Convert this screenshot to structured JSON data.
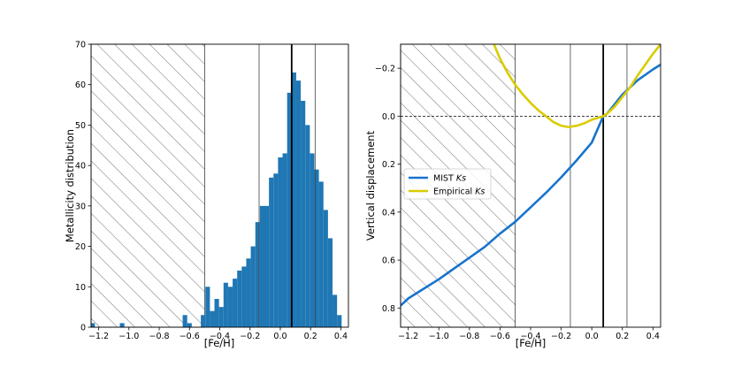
{
  "chart_data": [
    {
      "type": "bar",
      "xlabel": "[Fe/H]",
      "ylabel": "Metallicity distribution",
      "xlim": [
        -1.25,
        0.45
      ],
      "ylim": [
        0,
        70
      ],
      "xticks": [
        -1.2,
        -1.0,
        -0.8,
        -0.6,
        -0.4,
        -0.2,
        0.0,
        0.2,
        0.4
      ],
      "xtick_labels": [
        "−1.2",
        "−1.0",
        "−0.8",
        "−0.6",
        "−0.4",
        "−0.2",
        "0.0",
        "0.2",
        "0.4"
      ],
      "yticks": [
        0,
        10,
        20,
        30,
        40,
        50,
        60,
        70
      ],
      "ytick_labels": [
        "0",
        "10",
        "20",
        "30",
        "40",
        "50",
        "60",
        "70"
      ],
      "bin_width": 0.03,
      "bins": [
        {
          "x": -1.24,
          "value": 1
        },
        {
          "x": -1.045,
          "value": 1
        },
        {
          "x": -0.63,
          "value": 3
        },
        {
          "x": -0.6,
          "value": 1
        },
        {
          "x": -0.51,
          "value": 3
        },
        {
          "x": -0.48,
          "value": 10
        },
        {
          "x": -0.45,
          "value": 4
        },
        {
          "x": -0.42,
          "value": 7
        },
        {
          "x": -0.39,
          "value": 5
        },
        {
          "x": -0.36,
          "value": 11
        },
        {
          "x": -0.33,
          "value": 10
        },
        {
          "x": -0.3,
          "value": 12
        },
        {
          "x": -0.27,
          "value": 14
        },
        {
          "x": -0.24,
          "value": 15
        },
        {
          "x": -0.21,
          "value": 17
        },
        {
          "x": -0.18,
          "value": 20
        },
        {
          "x": -0.15,
          "value": 26
        },
        {
          "x": -0.12,
          "value": 30
        },
        {
          "x": -0.09,
          "value": 30
        },
        {
          "x": -0.06,
          "value": 37
        },
        {
          "x": -0.03,
          "value": 38
        },
        {
          "x": 0.0,
          "value": 42
        },
        {
          "x": 0.03,
          "value": 43
        },
        {
          "x": 0.06,
          "value": 58
        },
        {
          "x": 0.09,
          "value": 63
        },
        {
          "x": 0.12,
          "value": 61
        },
        {
          "x": 0.15,
          "value": 56
        },
        {
          "x": 0.18,
          "value": 50
        },
        {
          "x": 0.21,
          "value": 43
        },
        {
          "x": 0.24,
          "value": 39
        },
        {
          "x": 0.27,
          "value": 36
        },
        {
          "x": 0.3,
          "value": 29
        },
        {
          "x": 0.33,
          "value": 22
        },
        {
          "x": 0.36,
          "value": 8
        },
        {
          "x": 0.39,
          "value": 3
        }
      ],
      "bar_color": "#1f77b4",
      "hatched_region": [
        -1.25,
        -0.5
      ],
      "thin_vlines": [
        -0.14,
        0.23
      ],
      "thick_vline": 0.075
    },
    {
      "type": "line",
      "xlabel": "[Fe/H]",
      "ylabel": "Vertical displacement",
      "xlim": [
        -1.25,
        0.45
      ],
      "ylim": [
        0.88,
        -0.3
      ],
      "y_inverted": true,
      "xticks": [
        -1.2,
        -1.0,
        -0.8,
        -0.6,
        -0.4,
        -0.2,
        0.0,
        0.2,
        0.4
      ],
      "xtick_labels": [
        "−1.2",
        "−1.0",
        "−0.8",
        "−0.6",
        "−0.4",
        "−0.2",
        "0.0",
        "0.2",
        "0.4"
      ],
      "yticks": [
        -0.2,
        0.0,
        0.2,
        0.4,
        0.6,
        0.8
      ],
      "ytick_labels": [
        "−0.2",
        "0.0",
        "0.2",
        "0.4",
        "0.6",
        "0.8"
      ],
      "hatched_region": [
        -1.25,
        -0.5
      ],
      "thin_vlines": [
        -0.14,
        0.23
      ],
      "thick_vline": 0.075,
      "hline_dashed": 0.0,
      "legend_placement": "center-left",
      "series": [
        {
          "name": "MIST Ks",
          "legend_prefix": "MIST ",
          "legend_italic": "Ks",
          "color": "#1874cd",
          "x": [
            -1.25,
            -1.2,
            -1.1,
            -1.0,
            -0.9,
            -0.8,
            -0.7,
            -0.6,
            -0.5,
            -0.4,
            -0.3,
            -0.2,
            -0.1,
            0.0,
            0.075,
            0.1,
            0.2,
            0.3,
            0.4,
            0.45
          ],
          "y": [
            0.79,
            0.76,
            0.72,
            0.68,
            0.635,
            0.59,
            0.545,
            0.49,
            0.44,
            0.38,
            0.32,
            0.255,
            0.185,
            0.11,
            0.0,
            -0.01,
            -0.09,
            -0.15,
            -0.195,
            -0.215
          ]
        },
        {
          "name": "Empirical Ks",
          "legend_prefix": "Empirical ",
          "legend_italic": "Ks",
          "color": "#d9cc00",
          "x": [
            -0.64,
            -0.6,
            -0.55,
            -0.5,
            -0.45,
            -0.4,
            -0.35,
            -0.3,
            -0.25,
            -0.2,
            -0.15,
            -0.1,
            -0.05,
            0.0,
            0.075,
            0.1,
            0.15,
            0.2,
            0.25,
            0.3,
            0.35,
            0.4,
            0.45
          ],
          "y": [
            -0.3,
            -0.24,
            -0.18,
            -0.13,
            -0.09,
            -0.055,
            -0.025,
            0.0,
            0.025,
            0.04,
            0.045,
            0.04,
            0.03,
            0.015,
            0.0,
            -0.01,
            -0.04,
            -0.08,
            -0.12,
            -0.17,
            -0.215,
            -0.26,
            -0.3
          ]
        }
      ]
    }
  ]
}
